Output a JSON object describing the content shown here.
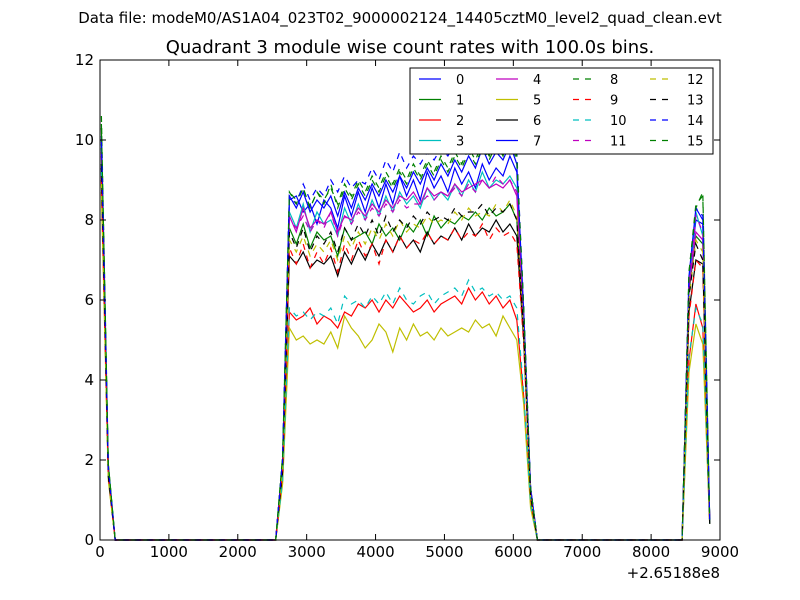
{
  "figure": {
    "suptitle": "Data file: modeM0/AS1A04_023T02_9000002124_14405cztM0_level2_quad_clean.evt"
  },
  "chart_data": {
    "type": "line",
    "title": "Quadrant 3 module wise count rates with 100.0s bins.",
    "xlabel": "",
    "ylabel": "",
    "x_offset_label": "+2.65188e8",
    "x_offset": 265188000,
    "xlim": [
      0,
      9000
    ],
    "ylim": [
      0,
      12
    ],
    "xticks": [
      0,
      1000,
      2000,
      3000,
      4000,
      5000,
      6000,
      7000,
      8000,
      9000
    ],
    "yticks": [
      0,
      2,
      4,
      6,
      8,
      10,
      12
    ],
    "grid": false,
    "legend_position": "top-right",
    "legend_columns": 4,
    "x": [
      20,
      120,
      220,
      320,
      2550,
      2650,
      2750,
      2850,
      2950,
      3050,
      3150,
      3250,
      3350,
      3450,
      3550,
      3650,
      3750,
      3850,
      3950,
      4050,
      4150,
      4250,
      4350,
      4450,
      4550,
      4650,
      4750,
      4850,
      4950,
      5050,
      5150,
      5250,
      5350,
      5450,
      5550,
      5650,
      5750,
      5850,
      5950,
      6050,
      6150,
      6250,
      6350,
      6450,
      8450,
      8550,
      8650,
      8750,
      8850
    ],
    "series": [
      {
        "name": "0",
        "color": "#0000ff",
        "dash": "solid",
        "values": [
          9.8,
          1.8,
          0,
          0,
          0,
          2.0,
          8.5,
          8.6,
          8.2,
          8.4,
          7.9,
          8.5,
          8.3,
          7.8,
          8.6,
          8.1,
          8.7,
          8.2,
          8.8,
          8.3,
          8.9,
          8.4,
          9.1,
          8.6,
          9.0,
          8.5,
          9.2,
          8.8,
          9.1,
          8.7,
          9.3,
          8.9,
          9.2,
          8.8,
          9.4,
          9.0,
          9.3,
          9.1,
          9.6,
          9.2,
          5.6,
          1.3,
          0,
          0,
          0,
          6.5,
          8.0,
          7.9,
          0.5
        ]
      },
      {
        "name": "1",
        "color": "#008000",
        "dash": "solid",
        "values": [
          10.3,
          1.9,
          0,
          0,
          0,
          1.9,
          7.8,
          7.4,
          7.9,
          7.3,
          7.7,
          7.5,
          7.6,
          7.1,
          7.8,
          7.5,
          7.6,
          7.7,
          7.4,
          7.9,
          7.6,
          7.8,
          7.5,
          7.9,
          7.7,
          8.0,
          7.6,
          8.1,
          7.8,
          8.0,
          7.9,
          8.1,
          8.0,
          8.2,
          8.0,
          8.3,
          8.1,
          8.2,
          8.4,
          8.0,
          5.3,
          1.2,
          0,
          0,
          0,
          6.2,
          7.6,
          7.4,
          0.5
        ]
      },
      {
        "name": "2",
        "color": "#ff0000",
        "dash": "solid",
        "values": [
          9.1,
          1.6,
          0,
          0,
          0,
          1.5,
          5.7,
          5.5,
          5.6,
          5.8,
          5.4,
          5.6,
          5.5,
          5.3,
          5.7,
          5.6,
          5.9,
          5.8,
          6.0,
          5.7,
          6.0,
          5.8,
          6.1,
          5.9,
          5.7,
          5.8,
          6.0,
          5.7,
          5.9,
          6.0,
          6.1,
          5.9,
          6.3,
          6.0,
          6.2,
          5.9,
          6.1,
          5.8,
          6.0,
          5.5,
          3.6,
          0.9,
          0,
          0,
          0,
          4.5,
          5.9,
          5.3,
          0.4
        ]
      },
      {
        "name": "3",
        "color": "#00bfbf",
        "dash": "solid",
        "values": [
          9.9,
          1.8,
          0,
          0,
          0,
          1.9,
          8.2,
          7.8,
          8.4,
          7.7,
          8.2,
          7.9,
          8.0,
          7.6,
          8.3,
          7.9,
          8.4,
          8.0,
          8.5,
          8.1,
          8.6,
          8.2,
          8.7,
          8.4,
          8.6,
          8.3,
          8.8,
          8.5,
          8.7,
          8.5,
          8.9,
          8.6,
          9.0,
          8.7,
          9.2,
          8.8,
          9.0,
          8.9,
          9.1,
          8.8,
          5.5,
          1.2,
          0,
          0,
          0,
          6.4,
          8.2,
          7.6,
          0.5
        ]
      },
      {
        "name": "4",
        "color": "#bf00bf",
        "dash": "solid",
        "values": [
          9.6,
          1.7,
          0,
          0,
          0,
          1.9,
          8.1,
          7.7,
          8.3,
          7.8,
          8.0,
          7.9,
          8.2,
          7.7,
          8.1,
          8.0,
          8.3,
          8.1,
          8.4,
          8.2,
          8.5,
          8.3,
          8.6,
          8.5,
          8.7,
          8.4,
          8.8,
          8.6,
          8.7,
          8.6,
          8.9,
          8.7,
          8.8,
          8.9,
          9.0,
          8.8,
          8.9,
          8.8,
          9.0,
          8.6,
          5.4,
          1.2,
          0,
          0,
          0,
          6.3,
          7.7,
          7.5,
          0.5
        ]
      },
      {
        "name": "5",
        "color": "#bfbf00",
        "dash": "solid",
        "values": [
          8.7,
          1.5,
          0,
          0,
          0,
          1.4,
          5.3,
          5.0,
          5.1,
          4.9,
          5.0,
          4.9,
          5.2,
          4.8,
          5.6,
          5.3,
          5.1,
          4.8,
          5.0,
          5.4,
          5.2,
          4.7,
          5.3,
          5.0,
          5.4,
          5.1,
          5.2,
          5.0,
          5.3,
          5.1,
          5.2,
          5.3,
          5.2,
          5.5,
          5.3,
          5.4,
          5.1,
          5.6,
          5.3,
          5.0,
          3.4,
          0.8,
          0,
          0,
          0,
          4.2,
          5.4,
          4.9,
          0.4
        ]
      },
      {
        "name": "6",
        "color": "#000000",
        "dash": "solid",
        "values": [
          9.3,
          1.6,
          0,
          0,
          0,
          1.7,
          7.1,
          6.9,
          7.2,
          6.8,
          7.0,
          6.9,
          7.1,
          6.6,
          7.2,
          6.9,
          7.3,
          7.0,
          7.4,
          7.1,
          7.5,
          7.2,
          7.6,
          7.3,
          7.5,
          7.2,
          7.7,
          7.4,
          7.6,
          7.5,
          7.8,
          7.5,
          7.9,
          7.6,
          7.8,
          7.7,
          8.0,
          7.7,
          7.9,
          7.6,
          5.0,
          1.1,
          0,
          0,
          0,
          5.7,
          7.0,
          6.9,
          0.4
        ]
      },
      {
        "name": "7",
        "color": "#0000ff",
        "dash": "solid",
        "values": [
          10.1,
          1.8,
          0,
          0,
          0,
          2.0,
          8.6,
          8.3,
          8.7,
          8.2,
          8.5,
          8.3,
          8.6,
          8.1,
          8.7,
          8.3,
          8.8,
          8.5,
          8.9,
          8.6,
          9.0,
          8.7,
          9.1,
          8.8,
          9.2,
          8.9,
          9.3,
          9.0,
          9.4,
          9.1,
          9.5,
          9.2,
          9.6,
          9.3,
          9.8,
          9.4,
          9.7,
          9.5,
          9.9,
          9.4,
          5.7,
          1.3,
          0,
          0,
          0,
          6.6,
          8.3,
          8.0,
          0.5
        ]
      },
      {
        "name": "8",
        "color": "#008000",
        "dash": "dashed",
        "values": [
          10.6,
          1.9,
          0,
          0,
          0,
          2.1,
          8.7,
          8.5,
          8.8,
          8.3,
          8.7,
          8.4,
          8.9,
          8.3,
          8.8,
          8.5,
          8.9,
          8.6,
          9.0,
          8.7,
          9.1,
          8.8,
          9.2,
          8.9,
          9.3,
          9.0,
          9.4,
          9.1,
          9.5,
          9.2,
          9.6,
          9.3,
          9.7,
          9.4,
          9.8,
          9.5,
          9.9,
          9.6,
          10.0,
          9.5,
          5.8,
          1.3,
          0,
          0,
          0,
          6.7,
          8.4,
          8.6,
          0.5
        ]
      },
      {
        "name": "9",
        "color": "#ff0000",
        "dash": "dashed",
        "values": [
          9.0,
          1.6,
          0,
          0,
          0,
          1.7,
          7.3,
          6.9,
          7.4,
          6.8,
          7.2,
          6.9,
          7.3,
          6.7,
          7.4,
          7.0,
          7.5,
          7.1,
          7.4,
          6.9,
          7.5,
          7.2,
          7.6,
          7.3,
          7.5,
          7.4,
          7.7,
          7.4,
          7.6,
          7.5,
          7.8,
          7.5,
          7.7,
          7.6,
          7.9,
          7.5,
          7.8,
          7.6,
          7.7,
          7.4,
          4.9,
          1.1,
          0,
          0,
          0,
          5.6,
          7.0,
          6.8,
          0.4
        ]
      },
      {
        "name": "10",
        "color": "#00bfbf",
        "dash": "dashed",
        "values": [
          9.2,
          1.6,
          0,
          0,
          0,
          1.5,
          5.8,
          5.6,
          5.7,
          5.5,
          5.7,
          5.6,
          5.8,
          5.4,
          6.1,
          5.9,
          6.0,
          5.8,
          6.1,
          5.9,
          6.2,
          5.9,
          6.3,
          6.0,
          5.9,
          6.1,
          6.2,
          5.9,
          6.1,
          6.2,
          6.3,
          6.1,
          6.5,
          6.2,
          6.3,
          6.1,
          6.2,
          6.0,
          6.1,
          5.8,
          3.7,
          0.9,
          0,
          0,
          0,
          4.6,
          5.8,
          5.4,
          0.4
        ]
      },
      {
        "name": "11",
        "color": "#bf00bf",
        "dash": "dashed",
        "values": [
          9.7,
          1.7,
          0,
          0,
          0,
          1.9,
          8.0,
          7.8,
          8.1,
          7.7,
          8.0,
          7.8,
          8.2,
          7.6,
          8.1,
          7.9,
          8.2,
          8.0,
          8.3,
          8.1,
          8.4,
          8.2,
          8.5,
          8.3,
          8.4,
          8.4,
          8.6,
          8.5,
          8.7,
          8.6,
          8.8,
          8.6,
          8.9,
          8.7,
          9.0,
          8.8,
          9.1,
          8.9,
          9.0,
          8.7,
          5.4,
          1.2,
          0,
          0,
          0,
          6.4,
          8.1,
          7.7,
          0.5
        ]
      },
      {
        "name": "12",
        "color": "#bfbf00",
        "dash": "dashed",
        "values": [
          8.9,
          1.5,
          0,
          0,
          0,
          1.8,
          7.5,
          7.2,
          7.6,
          7.1,
          7.4,
          7.2,
          7.5,
          7.0,
          7.6,
          7.3,
          7.7,
          7.4,
          7.8,
          7.5,
          7.9,
          7.6,
          8.0,
          7.7,
          7.9,
          7.8,
          8.1,
          7.9,
          8.0,
          7.9,
          8.2,
          8.0,
          8.3,
          8.1,
          8.2,
          8.1,
          8.4,
          8.2,
          8.5,
          8.1,
          5.2,
          1.1,
          0,
          0,
          0,
          6.0,
          7.5,
          7.2,
          0.4
        ]
      },
      {
        "name": "13",
        "color": "#000000",
        "dash": "dashed",
        "values": [
          9.4,
          1.6,
          0,
          0,
          0,
          1.8,
          7.7,
          7.3,
          7.8,
          7.2,
          7.6,
          7.4,
          7.7,
          7.2,
          7.8,
          7.5,
          7.9,
          7.6,
          8.0,
          7.6,
          8.1,
          7.7,
          8.0,
          7.8,
          8.1,
          7.9,
          8.2,
          8.0,
          8.1,
          8.0,
          8.3,
          8.1,
          8.2,
          8.2,
          8.4,
          8.1,
          8.3,
          8.2,
          8.4,
          8.0,
          5.2,
          1.1,
          0,
          0,
          0,
          6.1,
          7.4,
          7.0,
          0.4
        ]
      },
      {
        "name": "14",
        "color": "#0000ff",
        "dash": "dashed",
        "values": [
          10.0,
          1.8,
          0,
          0,
          0,
          2.0,
          8.6,
          8.4,
          8.9,
          8.5,
          8.8,
          8.6,
          9.0,
          8.7,
          9.1,
          8.8,
          9.0,
          8.9,
          9.3,
          9.0,
          9.5,
          9.2,
          9.7,
          9.3,
          9.6,
          9.4,
          9.7,
          9.5,
          9.8,
          9.6,
          9.9,
          9.7,
          10.1,
          9.8,
          10.3,
          9.9,
          10.2,
          10.0,
          10.1,
          9.7,
          5.8,
          1.3,
          0,
          0,
          0,
          6.6,
          8.3,
          8.1,
          0.5
        ]
      },
      {
        "name": "15",
        "color": "#008000",
        "dash": "dashed",
        "values": [
          10.4,
          1.9,
          0,
          0,
          0,
          2.1,
          8.7,
          8.4,
          8.8,
          8.3,
          8.7,
          8.5,
          8.8,
          8.4,
          8.9,
          8.6,
          9.0,
          8.7,
          9.1,
          8.8,
          9.2,
          8.9,
          9.3,
          9.0,
          9.4,
          9.1,
          9.5,
          9.2,
          9.6,
          9.3,
          9.7,
          9.4,
          9.8,
          9.5,
          9.9,
          9.6,
          10.0,
          9.6,
          10.2,
          9.6,
          5.8,
          1.3,
          0,
          0,
          0,
          6.7,
          8.3,
          8.7,
          0.5
        ]
      }
    ]
  }
}
